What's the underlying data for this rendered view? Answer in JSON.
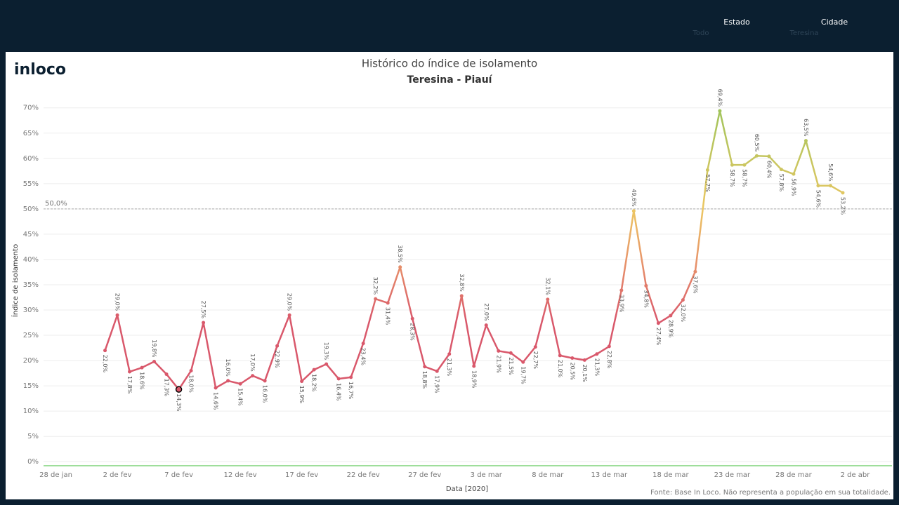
{
  "header": {
    "filters": [
      {
        "label": "Estado",
        "value": "Todo"
      },
      {
        "label": "Cidade",
        "value": "Teresina"
      }
    ]
  },
  "logo": "inloco",
  "footer": "Fonte: Base In Loco. Não representa a população em sua totalidade.",
  "chart_data": {
    "type": "line",
    "title": "Histórico do índice de isolamento",
    "subtitle": "Teresina - Piauí",
    "x_label": "Data [2020]",
    "y_label": "Índice de isolamento",
    "x": [
      "2020-02-01",
      "2020-02-02",
      "2020-02-03",
      "2020-02-04",
      "2020-02-05",
      "2020-02-06",
      "2020-02-07",
      "2020-02-08",
      "2020-02-09",
      "2020-02-10",
      "2020-02-11",
      "2020-02-12",
      "2020-02-13",
      "2020-02-14",
      "2020-02-15",
      "2020-02-16",
      "2020-02-17",
      "2020-02-18",
      "2020-02-19",
      "2020-02-20",
      "2020-02-21",
      "2020-02-22",
      "2020-02-23",
      "2020-02-24",
      "2020-02-25",
      "2020-02-26",
      "2020-02-27",
      "2020-02-28",
      "2020-02-29",
      "2020-03-01",
      "2020-03-02",
      "2020-03-03",
      "2020-03-04",
      "2020-03-05",
      "2020-03-06",
      "2020-03-07",
      "2020-03-08",
      "2020-03-09",
      "2020-03-10",
      "2020-03-11",
      "2020-03-12",
      "2020-03-13",
      "2020-03-14",
      "2020-03-15",
      "2020-03-16",
      "2020-03-17",
      "2020-03-18",
      "2020-03-19",
      "2020-03-20",
      "2020-03-21",
      "2020-03-22",
      "2020-03-23",
      "2020-03-24",
      "2020-03-25",
      "2020-03-26",
      "2020-03-27",
      "2020-03-28",
      "2020-03-29",
      "2020-03-30",
      "2020-03-31",
      "2020-04-01"
    ],
    "values": [
      22.0,
      29.0,
      17.8,
      18.6,
      19.8,
      17.3,
      14.3,
      18.0,
      27.5,
      14.6,
      16.0,
      15.4,
      17.0,
      16.0,
      22.9,
      29.0,
      15.9,
      18.2,
      19.3,
      16.4,
      16.7,
      23.4,
      32.2,
      31.4,
      38.5,
      28.3,
      18.8,
      17.9,
      21.3,
      32.8,
      18.9,
      27.0,
      21.9,
      21.5,
      19.7,
      22.7,
      32.1,
      21.0,
      20.5,
      20.1,
      21.3,
      22.8,
      33.9,
      49.6,
      34.8,
      27.4,
      28.9,
      32.0,
      37.6,
      57.7,
      69.4,
      58.7,
      58.7,
      60.5,
      60.4,
      57.8,
      56.9,
      63.5,
      54.6,
      54.6,
      53.2
    ],
    "value_labels": [
      "22,0%",
      "29,0%",
      "17,8%",
      "18,6%",
      "19,8%",
      "17,3%",
      "14,3%",
      "18,0%",
      "27,5%",
      "14,6%",
      "16,0%",
      "15,4%",
      "17,0%",
      "16,0%",
      "22,9%",
      "29,0%",
      "15,9%",
      "18,2%",
      "19,3%",
      "16,4%",
      "16,7%",
      "23,4%",
      "32,2%",
      "31,4%",
      "38,5%",
      "28,3%",
      "18,8%",
      "17,9%",
      "21,3%",
      "32,8%",
      "18,9%",
      "27,0%",
      "21,9%",
      "21,5%",
      "19,7%",
      "22,7%",
      "32,1%",
      "21,0%",
      "20,5%",
      "20,1%",
      "21,3%",
      "22,8%",
      "33,9%",
      "49,6%",
      "34,8%",
      "27,4%",
      "28,9%",
      "32,0%",
      "37,6%",
      "57,7%",
      "69,4%",
      "58,7%",
      "58,7%",
      "60,5%",
      "60,4%",
      "57,8%",
      "56,9%",
      "63,5%",
      "54,6%",
      "54,6%",
      "53,2%"
    ],
    "selected": "2020-02-07",
    "color_stops": [
      {
        "value": 28,
        "color": "#d9586b"
      },
      {
        "value": 40,
        "color": "#e8966a"
      },
      {
        "value": 50,
        "color": "#ecc763"
      },
      {
        "value": 70,
        "color": "#9fc45b"
      }
    ],
    "xlim": [
      "2020-01-27",
      "2020-04-05"
    ],
    "xticks": [
      {
        "value": "2020-01-28",
        "label": "28 de jan"
      },
      {
        "value": "2020-02-02",
        "label": "2 de fev"
      },
      {
        "value": "2020-02-07",
        "label": "7 de fev"
      },
      {
        "value": "2020-02-12",
        "label": "12 de fev"
      },
      {
        "value": "2020-02-17",
        "label": "17 de fev"
      },
      {
        "value": "2020-02-22",
        "label": "22 de fev"
      },
      {
        "value": "2020-02-27",
        "label": "27 de fev"
      },
      {
        "value": "2020-03-03",
        "label": "3 de mar"
      },
      {
        "value": "2020-03-08",
        "label": "8 de mar"
      },
      {
        "value": "2020-03-13",
        "label": "13 de mar"
      },
      {
        "value": "2020-03-18",
        "label": "18 de mar"
      },
      {
        "value": "2020-03-23",
        "label": "23 de mar"
      },
      {
        "value": "2020-03-28",
        "label": "28 de mar"
      },
      {
        "value": "2020-04-02",
        "label": "2 de abr"
      }
    ],
    "ylim": [
      -0.8,
      72.6
    ],
    "yticks": [
      {
        "value": 0,
        "label": "0%"
      },
      {
        "value": 5,
        "label": "5%"
      },
      {
        "value": 10,
        "label": "10%"
      },
      {
        "value": 15,
        "label": "15%"
      },
      {
        "value": 20,
        "label": "20%"
      },
      {
        "value": 25,
        "label": "25%"
      },
      {
        "value": 30,
        "label": "30%"
      },
      {
        "value": 35,
        "label": "35%"
      },
      {
        "value": 40,
        "label": "40%"
      },
      {
        "value": 45,
        "label": "45%"
      },
      {
        "value": 50,
        "label": "50%"
      },
      {
        "value": 55,
        "label": "55%"
      },
      {
        "value": 60,
        "label": "60%"
      },
      {
        "value": 65,
        "label": "65%"
      },
      {
        "value": 70,
        "label": "70%"
      }
    ],
    "reference_line": {
      "value": 50,
      "label": "50,0%"
    },
    "grid": true
  }
}
